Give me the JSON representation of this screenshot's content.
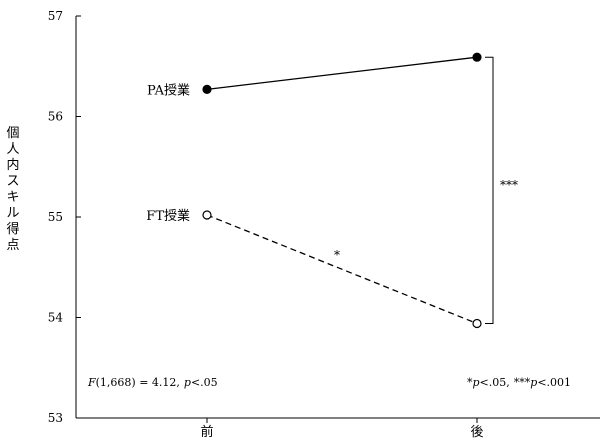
{
  "chart_data": {
    "type": "line",
    "categories": [
      "前",
      "後"
    ],
    "ylabel": "個人内スキル得点",
    "ylim": [
      53,
      57
    ],
    "yticks": [
      53,
      54,
      55,
      56,
      57
    ],
    "series": [
      {
        "name": "PA授業",
        "values": [
          56.27,
          56.59
        ],
        "line_style": "solid",
        "marker": "filled-circle"
      },
      {
        "name": "FT授業",
        "values": [
          55.02,
          53.94
        ],
        "line_style": "dashed",
        "marker": "open-circle"
      }
    ],
    "annotations": {
      "slope_sig": "*",
      "bracket_sig": "***",
      "stat_left": {
        "F": "F",
        "rest": "(1,668) = 4.12,",
        "p": "p",
        "pval": "<.05"
      },
      "stat_right": {
        "s1": "*",
        "p1": "p",
        "v1": "<.05,",
        "s2": "***",
        "p2": "p",
        "v2": "<.001"
      }
    },
    "grid": false
  }
}
